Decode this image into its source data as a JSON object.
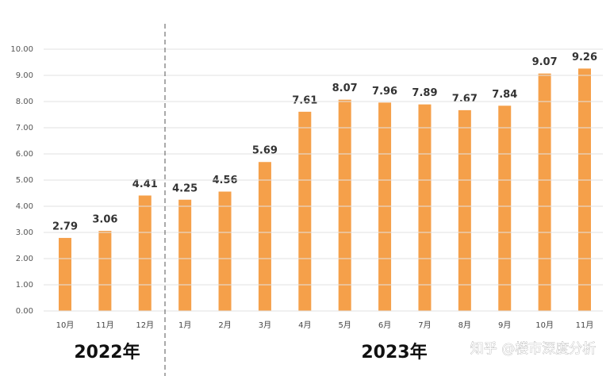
{
  "chart_data": {
    "type": "bar",
    "categories": [
      "10月",
      "11月",
      "12月",
      "1月",
      "2月",
      "3月",
      "4月",
      "5月",
      "6月",
      "7月",
      "8月",
      "9月",
      "10月",
      "11月"
    ],
    "values": [
      2.79,
      3.06,
      4.41,
      4.25,
      4.56,
      5.69,
      7.61,
      8.07,
      7.96,
      7.89,
      7.67,
      7.84,
      9.07,
      9.26
    ],
    "color": "#f5a04a",
    "ylim": [
      0,
      10
    ],
    "yticks": [
      {
        "value": 0,
        "label": "0.00"
      },
      {
        "value": 1,
        "label": "1.00"
      },
      {
        "value": 2,
        "label": "2.00"
      },
      {
        "value": 3,
        "label": "3.00"
      },
      {
        "value": 4,
        "label": "4.00"
      },
      {
        "value": 5,
        "label": "5.00"
      },
      {
        "value": 6,
        "label": "6.00"
      },
      {
        "value": 7,
        "label": "7.00"
      },
      {
        "value": 8,
        "label": "8.00"
      },
      {
        "value": 9,
        "label": "9.00"
      },
      {
        "value": 10,
        "label": "10.00"
      }
    ],
    "grid": true,
    "annotations": [
      "2022年",
      "2023年"
    ],
    "watermark": "知乎 @楼市深度分析"
  }
}
